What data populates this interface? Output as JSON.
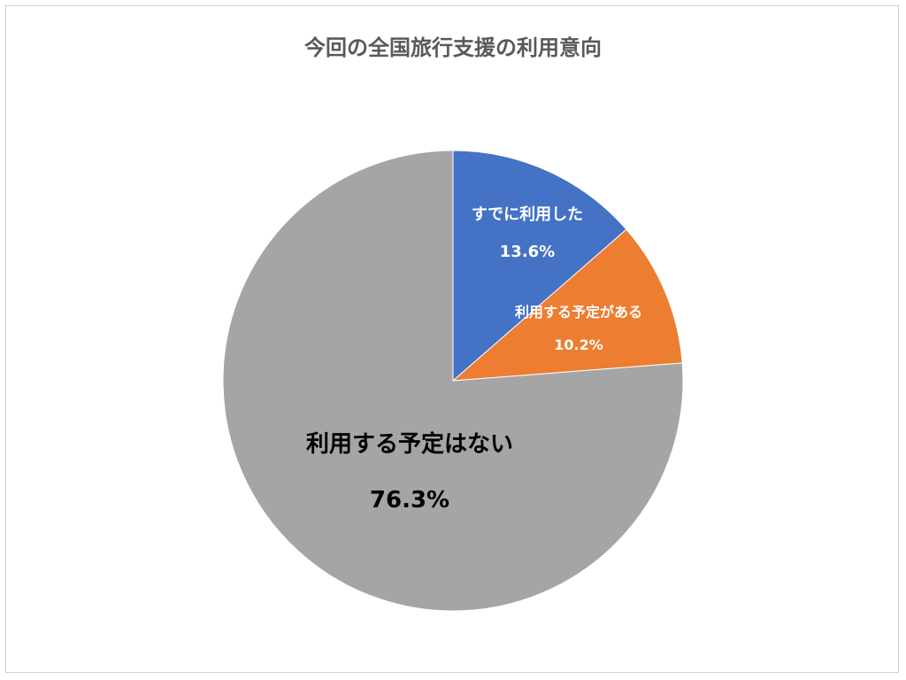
{
  "chart_data": {
    "type": "pie",
    "title": "今回の全国旅行支援の利用意向",
    "slices": [
      {
        "label": "すでに利用した",
        "value": 13.6,
        "value_label": "13.6%",
        "color": "#4472C4",
        "text_color": "#ffffff"
      },
      {
        "label": "利用する予定がある",
        "value": 10.2,
        "value_label": "10.2%",
        "color": "#ED7D31",
        "text_color": "#ffffff"
      },
      {
        "label": "利用する予定はない",
        "value": 76.3,
        "value_label": "76.3%",
        "color": "#A5A5A5",
        "text_color": "#000000"
      }
    ],
    "legend": "none",
    "start_angle": "12 o'clock",
    "direction": "clockwise"
  }
}
